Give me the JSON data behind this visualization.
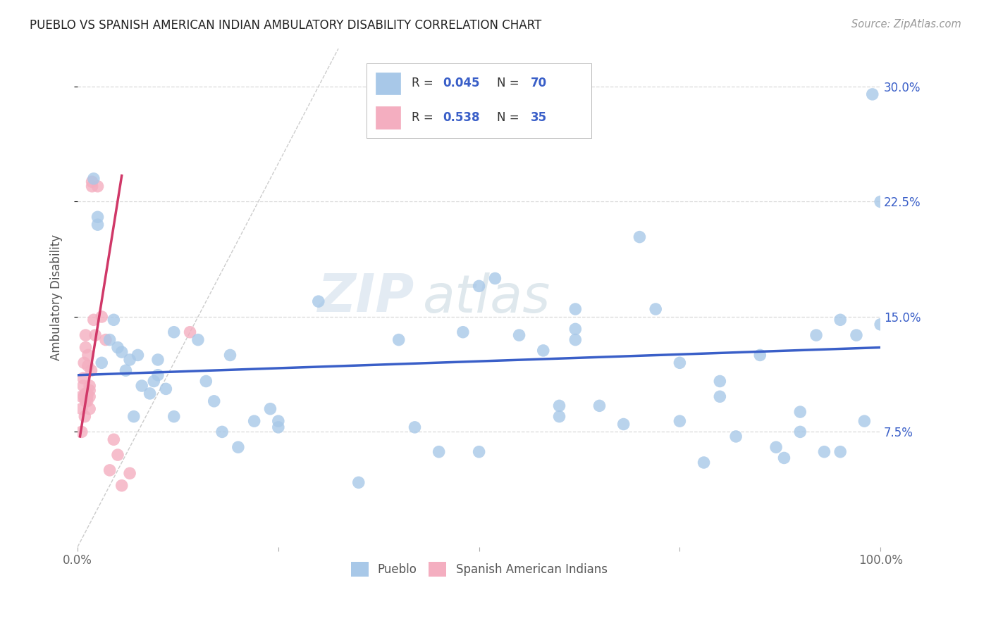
{
  "title": "PUEBLO VS SPANISH AMERICAN INDIAN AMBULATORY DISABILITY CORRELATION CHART",
  "source": "Source: ZipAtlas.com",
  "ylabel": "Ambulatory Disability",
  "xlim": [
    0.0,
    1.0
  ],
  "ylim": [
    0.0,
    0.325
  ],
  "xtick_positions": [
    0.0,
    0.25,
    0.5,
    0.75,
    1.0
  ],
  "xtick_labels": [
    "0.0%",
    "",
    "",
    "",
    "100.0%"
  ],
  "ytick_positions": [
    0.075,
    0.15,
    0.225,
    0.3
  ],
  "ytick_labels": [
    "7.5%",
    "15.0%",
    "22.5%",
    "30.0%"
  ],
  "blue_color": "#a8c8e8",
  "pink_color": "#f4aec0",
  "blue_line_color": "#3a5fc8",
  "pink_line_color": "#d03868",
  "diag_line_color": "#cccccc",
  "watermark_zip": "ZIP",
  "watermark_atlas": "atlas",
  "blue_scatter_x": [
    0.02,
    0.025,
    0.03,
    0.04,
    0.045,
    0.05,
    0.055,
    0.06,
    0.065,
    0.07,
    0.075,
    0.08,
    0.09,
    0.095,
    0.1,
    0.1,
    0.11,
    0.12,
    0.12,
    0.15,
    0.16,
    0.17,
    0.18,
    0.19,
    0.2,
    0.22,
    0.24,
    0.25,
    0.25,
    0.3,
    0.35,
    0.4,
    0.42,
    0.45,
    0.48,
    0.5,
    0.52,
    0.55,
    0.58,
    0.6,
    0.62,
    0.62,
    0.65,
    0.68,
    0.7,
    0.72,
    0.75,
    0.78,
    0.8,
    0.8,
    0.82,
    0.85,
    0.87,
    0.88,
    0.9,
    0.9,
    0.92,
    0.93,
    0.95,
    0.95,
    0.97,
    0.98,
    0.99,
    1.0,
    1.0,
    0.5,
    0.6,
    0.75,
    0.025,
    0.62
  ],
  "blue_scatter_y": [
    0.24,
    0.215,
    0.12,
    0.135,
    0.148,
    0.13,
    0.127,
    0.115,
    0.122,
    0.085,
    0.125,
    0.105,
    0.1,
    0.108,
    0.112,
    0.122,
    0.103,
    0.14,
    0.085,
    0.135,
    0.108,
    0.095,
    0.075,
    0.125,
    0.065,
    0.082,
    0.09,
    0.082,
    0.078,
    0.16,
    0.042,
    0.135,
    0.078,
    0.062,
    0.14,
    0.062,
    0.175,
    0.138,
    0.128,
    0.092,
    0.142,
    0.135,
    0.092,
    0.08,
    0.202,
    0.155,
    0.082,
    0.055,
    0.108,
    0.098,
    0.072,
    0.125,
    0.065,
    0.058,
    0.088,
    0.075,
    0.138,
    0.062,
    0.062,
    0.148,
    0.138,
    0.082,
    0.295,
    0.225,
    0.145,
    0.17,
    0.085,
    0.12,
    0.21,
    0.155
  ],
  "pink_scatter_x": [
    0.005,
    0.005,
    0.005,
    0.007,
    0.007,
    0.008,
    0.008,
    0.009,
    0.01,
    0.01,
    0.01,
    0.01,
    0.012,
    0.012,
    0.012,
    0.013,
    0.013,
    0.015,
    0.015,
    0.015,
    0.015,
    0.017,
    0.018,
    0.018,
    0.02,
    0.022,
    0.025,
    0.03,
    0.035,
    0.04,
    0.045,
    0.05,
    0.055,
    0.065,
    0.14
  ],
  "pink_scatter_y": [
    0.075,
    0.09,
    0.098,
    0.105,
    0.11,
    0.098,
    0.12,
    0.085,
    0.13,
    0.138,
    0.1,
    0.095,
    0.095,
    0.098,
    0.1,
    0.118,
    0.125,
    0.09,
    0.098,
    0.102,
    0.105,
    0.115,
    0.235,
    0.238,
    0.148,
    0.138,
    0.235,
    0.15,
    0.135,
    0.05,
    0.07,
    0.06,
    0.04,
    0.048,
    0.14
  ],
  "blue_trend_x": [
    0.0,
    1.0
  ],
  "blue_trend_y": [
    0.112,
    0.13
  ],
  "pink_trend_x": [
    0.003,
    0.055
  ],
  "pink_trend_y": [
    0.072,
    0.242
  ],
  "diag_line_x": [
    0.0,
    0.325
  ],
  "diag_line_y": [
    0.0,
    0.325
  ]
}
